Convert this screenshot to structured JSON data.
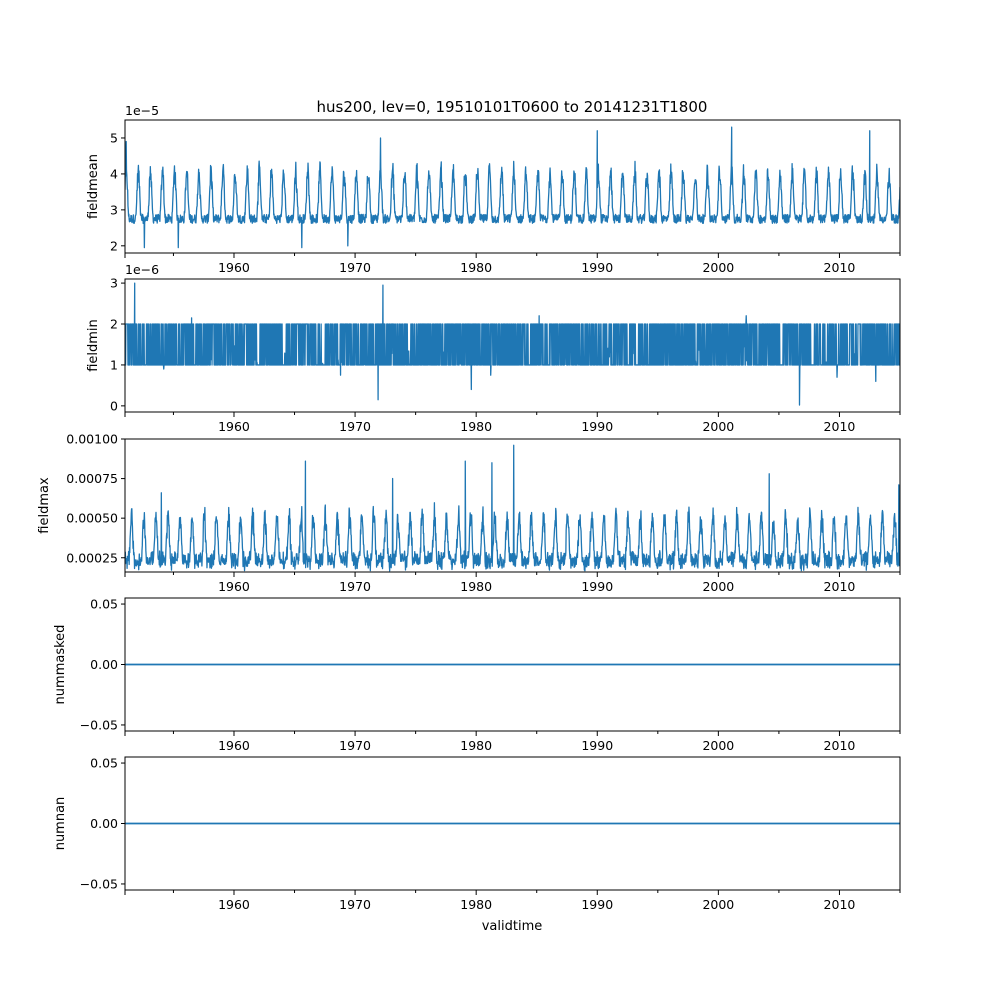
{
  "chart_data": {
    "type": "line",
    "title": "hus200, lev=0, 19510101T0600 to 20141231T1800",
    "xlabel": "validtime",
    "xlim": [
      1951.0,
      2015.0
    ],
    "xticks": [
      1960,
      1970,
      1980,
      1990,
      2000,
      2010
    ],
    "xtick_labels": [
      "1960",
      "1970",
      "1980",
      "1990",
      "2000",
      "2010"
    ],
    "xminor_ticks": [
      1955,
      1965,
      1975,
      1985,
      1995,
      2005,
      2015
    ],
    "grid": false,
    "line_color": "#1f77b4",
    "panels": [
      {
        "ylabel": "fieldmean",
        "offset_label": "1e−5",
        "ylim": [
          1.8,
          5.5
        ],
        "yticks": [
          2,
          3,
          4,
          5
        ],
        "ytick_labels": [
          "2",
          "3",
          "4",
          "5"
        ],
        "series": {
          "kind": "seasonal",
          "base": 2.7,
          "amplitude": 1.4,
          "noise": 0.25,
          "phase": 0.1,
          "spikes": [
            [
              1951.1,
              4.9
            ],
            [
              1990.0,
              5.2
            ],
            [
              2001.1,
              5.3
            ],
            [
              2012.5,
              5.2
            ],
            [
              1972.1,
              5.0
            ],
            [
              1952.6,
              1.95
            ],
            [
              1955.4,
              1.95
            ],
            [
              1969.4,
              2.0
            ],
            [
              1965.6,
              1.95
            ]
          ]
        }
      },
      {
        "ylabel": "fieldmin",
        "offset_label": "1e−6",
        "ylim": [
          -0.15,
          3.1
        ],
        "yticks": [
          0,
          1,
          2,
          3
        ],
        "ytick_labels": [
          "0",
          "1",
          "2",
          "3"
        ],
        "series": {
          "kind": "band",
          "low": 1.0,
          "high": 2.0,
          "spikes": [
            [
              1951.8,
              3.0
            ],
            [
              1972.3,
              2.95
            ],
            [
              1971.9,
              0.15
            ],
            [
              1979.6,
              0.4
            ],
            [
              2006.7,
              0.02
            ],
            [
              2009.8,
              0.7
            ],
            [
              2013.0,
              0.6
            ],
            [
              1968.8,
              0.75
            ],
            [
              1981.2,
              0.75
            ],
            [
              1954.2,
              0.9
            ],
            [
              2002.3,
              2.2
            ],
            [
              1985.2,
              2.2
            ],
            [
              1956.5,
              2.15
            ]
          ]
        }
      },
      {
        "ylabel": "fieldmax",
        "offset_label": "",
        "ylim": [
          0.00016,
          0.001
        ],
        "yticks": [
          0.00025,
          0.0005,
          0.00075,
          0.001
        ],
        "ytick_labels": [
          "0.00025",
          "0.00050",
          "0.00075",
          "0.00100"
        ],
        "series": {
          "kind": "noisy",
          "base": 0.00022,
          "amplitude": 0.0003,
          "noise": 6e-05,
          "phase": 0.55,
          "spikes": [
            [
              1983.1,
              0.00096
            ],
            [
              1965.9,
              0.00086
            ],
            [
              1979.1,
              0.00086
            ],
            [
              1981.3,
              0.00085
            ],
            [
              2004.2,
              0.00078
            ],
            [
              1973.1,
              0.00075
            ],
            [
              2014.9,
              0.00071
            ],
            [
              1954.0,
              0.00066
            ]
          ]
        }
      },
      {
        "ylabel": "nummasked",
        "offset_label": "",
        "ylim": [
          -0.055,
          0.055
        ],
        "yticks": [
          -0.05,
          0.0,
          0.05
        ],
        "ytick_labels": [
          "−0.05",
          "0.00",
          "0.05"
        ],
        "series": {
          "kind": "constant",
          "value": 0.0
        }
      },
      {
        "ylabel": "numnan",
        "offset_label": "",
        "ylim": [
          -0.055,
          0.055
        ],
        "yticks": [
          -0.05,
          0.0,
          0.05
        ],
        "ytick_labels": [
          "−0.05",
          "0.00",
          "0.05"
        ],
        "series": {
          "kind": "constant",
          "value": 0.0
        }
      }
    ]
  }
}
